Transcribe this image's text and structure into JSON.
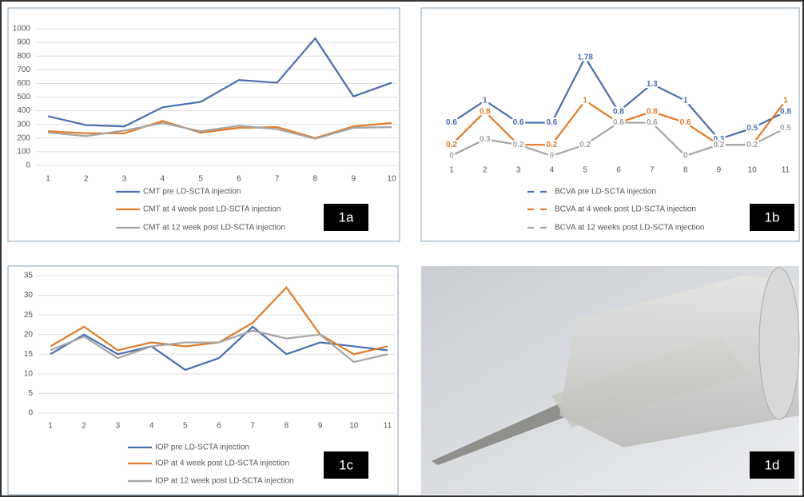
{
  "chart_data": [
    {
      "type": "line",
      "panel_label": "1a",
      "categories": [
        "1",
        "2",
        "3",
        "4",
        "5",
        "6",
        "7",
        "8",
        "9",
        "10"
      ],
      "ylim": [
        0,
        1000
      ],
      "yticks": [
        0,
        100,
        200,
        300,
        400,
        500,
        600,
        700,
        800,
        900,
        1000
      ],
      "grid": true,
      "series": [
        {
          "name": "CMT pre LD-SCTA injection",
          "color": "#4a6fb0",
          "values": [
            360,
            295,
            285,
            425,
            465,
            625,
            605,
            930,
            505,
            605
          ]
        },
        {
          "name": "CMT at 4 week post LD-SCTA injection",
          "color": "#e07b2a",
          "values": [
            250,
            235,
            235,
            325,
            240,
            275,
            280,
            200,
            285,
            310
          ]
        },
        {
          "name": "CMT at 12 week post LD-SCTA injection",
          "color": "#a5a5a5",
          "values": [
            240,
            215,
            255,
            310,
            250,
            290,
            265,
            195,
            275,
            280
          ]
        }
      ]
    },
    {
      "type": "line",
      "panel_label": "1b",
      "categories": [
        "1",
        "2",
        "3",
        "4",
        "5",
        "6",
        "7",
        "8",
        "9",
        "10",
        "11"
      ],
      "dashed_legend": true,
      "data_labels": true,
      "series": [
        {
          "name": "BCVA pre LD-SCTA injection",
          "color": "#4a6fb0",
          "values": [
            0.6,
            1,
            0.6,
            0.6,
            1.78,
            0.8,
            1.3,
            1,
            0.3,
            0.5,
            0.8
          ]
        },
        {
          "name": "BCVA at 4 week post LD-SCTA injection",
          "color": "#e07b2a",
          "values": [
            0.2,
            0.8,
            0.2,
            0.2,
            1,
            0.6,
            0.8,
            0.6,
            0.2,
            0.2,
            1
          ]
        },
        {
          "name": "BCVA at 12 weeks post LD-SCTA injection",
          "color": "#a5a5a5",
          "values": [
            0,
            0.3,
            0.2,
            0,
            0.2,
            0.6,
            0.6,
            0,
            0.2,
            0.2,
            0.5
          ]
        }
      ]
    },
    {
      "type": "line",
      "panel_label": "1c",
      "categories": [
        "1",
        "2",
        "3",
        "4",
        "5",
        "6",
        "7",
        "8",
        "9",
        "10",
        "11"
      ],
      "ylim": [
        0,
        35
      ],
      "yticks": [
        0,
        5,
        10,
        15,
        20,
        25,
        30,
        35
      ],
      "grid": true,
      "series": [
        {
          "name": "IOP pre LD-SCTA injection",
          "color": "#4a6fb0",
          "values": [
            15,
            20,
            15,
            17,
            11,
            14,
            22,
            15,
            18,
            17,
            16
          ]
        },
        {
          "name": "IOP at 4 week post LD-SCTA injection",
          "color": "#e07b2a",
          "values": [
            17,
            22,
            16,
            18,
            17,
            18,
            23,
            32,
            20,
            15,
            17
          ]
        },
        {
          "name": "IOP at 12 week post LD-SCTA injection",
          "color": "#a5a5a5",
          "values": [
            16,
            19.5,
            14,
            17,
            18,
            18,
            21,
            19,
            20,
            13,
            15
          ]
        }
      ]
    }
  ],
  "photo": {
    "panel_label": "1d"
  }
}
